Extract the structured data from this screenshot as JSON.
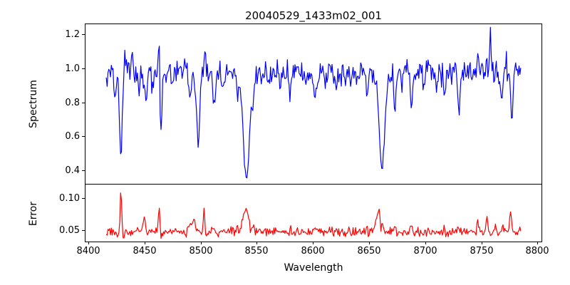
{
  "chart_data": {
    "type": "line",
    "title": "20040529_1433m02_001",
    "xlabel": "Wavelength",
    "xlim": [
      8397.5,
      8803.5
    ],
    "x_data_range": [
      8416,
      8785
    ],
    "x_ticks": [
      8400,
      8450,
      8500,
      8550,
      8600,
      8650,
      8700,
      8750,
      8800
    ],
    "x_tick_labels": [
      "8400",
      "8450",
      "8500",
      "8550",
      "8600",
      "8650",
      "8700",
      "8750",
      "8800"
    ],
    "grid": false,
    "legend": "none",
    "panels": [
      {
        "name": "spectrum",
        "ylabel": "Spectrum",
        "line_color": "#0000ff",
        "ylim": [
          0.322,
          1.258
        ],
        "y_ticks": [
          1.2,
          1.0,
          0.8,
          0.6,
          0.4
        ],
        "y_tick_labels": [
          "1.2",
          "1.0",
          "0.8",
          "0.6",
          "0.4"
        ],
        "continuum": 0.975,
        "noise_amplitude": 0.09,
        "clamp": [
          0.345,
          1.24
        ],
        "features_gaussian": [
          [
            8418,
            -0.05,
            1.5
          ],
          [
            8424,
            -0.16,
            0.9
          ],
          [
            8429,
            -0.5,
            1.1
          ],
          [
            8432.5,
            0.14,
            0.6
          ],
          [
            8439,
            0.1,
            0.7
          ],
          [
            8445,
            -0.1,
            0.8
          ],
          [
            8451,
            -0.17,
            1.0
          ],
          [
            8457,
            -0.12,
            0.8
          ],
          [
            8463,
            0.22,
            0.5
          ],
          [
            8464.8,
            -0.36,
            0.9
          ],
          [
            8475,
            -0.08,
            0.8
          ],
          [
            8490,
            -0.12,
            0.9
          ],
          [
            8494.5,
            -0.12,
            0.8
          ],
          [
            8497.8,
            -0.44,
            1.2
          ],
          [
            8504,
            0.1,
            0.7
          ],
          [
            8512,
            -0.2,
            0.9
          ],
          [
            8520,
            -0.08,
            0.7
          ],
          [
            8533,
            -0.1,
            1.0
          ],
          [
            8540.8,
            -0.62,
            2.8
          ],
          [
            8547,
            -0.1,
            0.8
          ],
          [
            8560,
            -0.08,
            0.7
          ],
          [
            8571,
            -0.09,
            0.7
          ],
          [
            8580,
            -0.13,
            0.9
          ],
          [
            8594,
            -0.08,
            0.7
          ],
          [
            8602,
            -0.15,
            0.9
          ],
          [
            8611,
            -0.09,
            0.7
          ],
          [
            8621,
            -0.1,
            0.8
          ],
          [
            8634,
            -0.08,
            0.7
          ],
          [
            8648,
            -0.12,
            0.9
          ],
          [
            8661.5,
            -0.56,
            2.4
          ],
          [
            8673,
            -0.22,
            0.9
          ],
          [
            8679,
            -0.1,
            0.7
          ],
          [
            8688,
            -0.22,
            0.9
          ],
          [
            8699,
            -0.08,
            0.7
          ],
          [
            8710,
            -0.09,
            0.7
          ],
          [
            8717,
            -0.14,
            0.8
          ],
          [
            8730,
            -0.22,
            0.9
          ],
          [
            8742,
            -0.1,
            0.7
          ],
          [
            8747,
            0.1,
            0.6
          ],
          [
            8758,
            0.22,
            0.8
          ],
          [
            8768,
            -0.16,
            0.8
          ],
          [
            8772,
            0.12,
            0.6
          ],
          [
            8777,
            -0.28,
            0.9
          ]
        ]
      },
      {
        "name": "error",
        "ylabel": "Error",
        "line_color": "#ff0000",
        "ylim": [
          0.034,
          0.1205
        ],
        "y_ticks": [
          0.1,
          0.05
        ],
        "y_tick_labels": [
          "0.10",
          "0.05"
        ],
        "continuum": 0.048,
        "noise_amplitude": 0.009,
        "clamp": [
          0.0365,
          0.118
        ],
        "features_gaussian": [
          [
            8429,
            0.066,
            0.6
          ],
          [
            8431,
            -0.006,
            0.5
          ],
          [
            8445,
            0.006,
            0.8
          ],
          [
            8450,
            0.02,
            0.9
          ],
          [
            8455,
            0.006,
            0.6
          ],
          [
            8463,
            0.038,
            0.55
          ],
          [
            8464.5,
            -0.005,
            0.4
          ],
          [
            8475,
            0.004,
            0.6
          ],
          [
            8491,
            0.015,
            1.0
          ],
          [
            8494,
            0.018,
            0.8
          ],
          [
            8503,
            0.035,
            0.5
          ],
          [
            8512,
            0.008,
            0.6
          ],
          [
            8533,
            0.008,
            0.8
          ],
          [
            8539,
            0.028,
            1.8
          ],
          [
            8542,
            0.024,
            1.2
          ],
          [
            8547,
            0.012,
            0.7
          ],
          [
            8560,
            0.004,
            0.6
          ],
          [
            8580,
            0.007,
            0.8
          ],
          [
            8602,
            0.006,
            0.7
          ],
          [
            8621,
            0.004,
            0.6
          ],
          [
            8648,
            0.006,
            0.7
          ],
          [
            8656,
            0.02,
            1.2
          ],
          [
            8658.5,
            0.034,
            0.9
          ],
          [
            8662,
            0.015,
            1.0
          ],
          [
            8673,
            0.01,
            0.7
          ],
          [
            8688,
            0.008,
            0.7
          ],
          [
            8717,
            0.006,
            0.6
          ],
          [
            8730,
            0.008,
            0.7
          ],
          [
            8740,
            0.008,
            0.8
          ],
          [
            8747,
            0.018,
            0.8
          ],
          [
            8755,
            0.026,
            0.8
          ],
          [
            8762,
            0.01,
            0.7
          ],
          [
            8769,
            0.012,
            0.7
          ],
          [
            8776,
            0.032,
            0.9
          ],
          [
            8781,
            -0.004,
            0.5
          ]
        ]
      }
    ],
    "render": {
      "seed": 1433,
      "step_angstrom": 0.75,
      "line_width": 1.2
    }
  }
}
